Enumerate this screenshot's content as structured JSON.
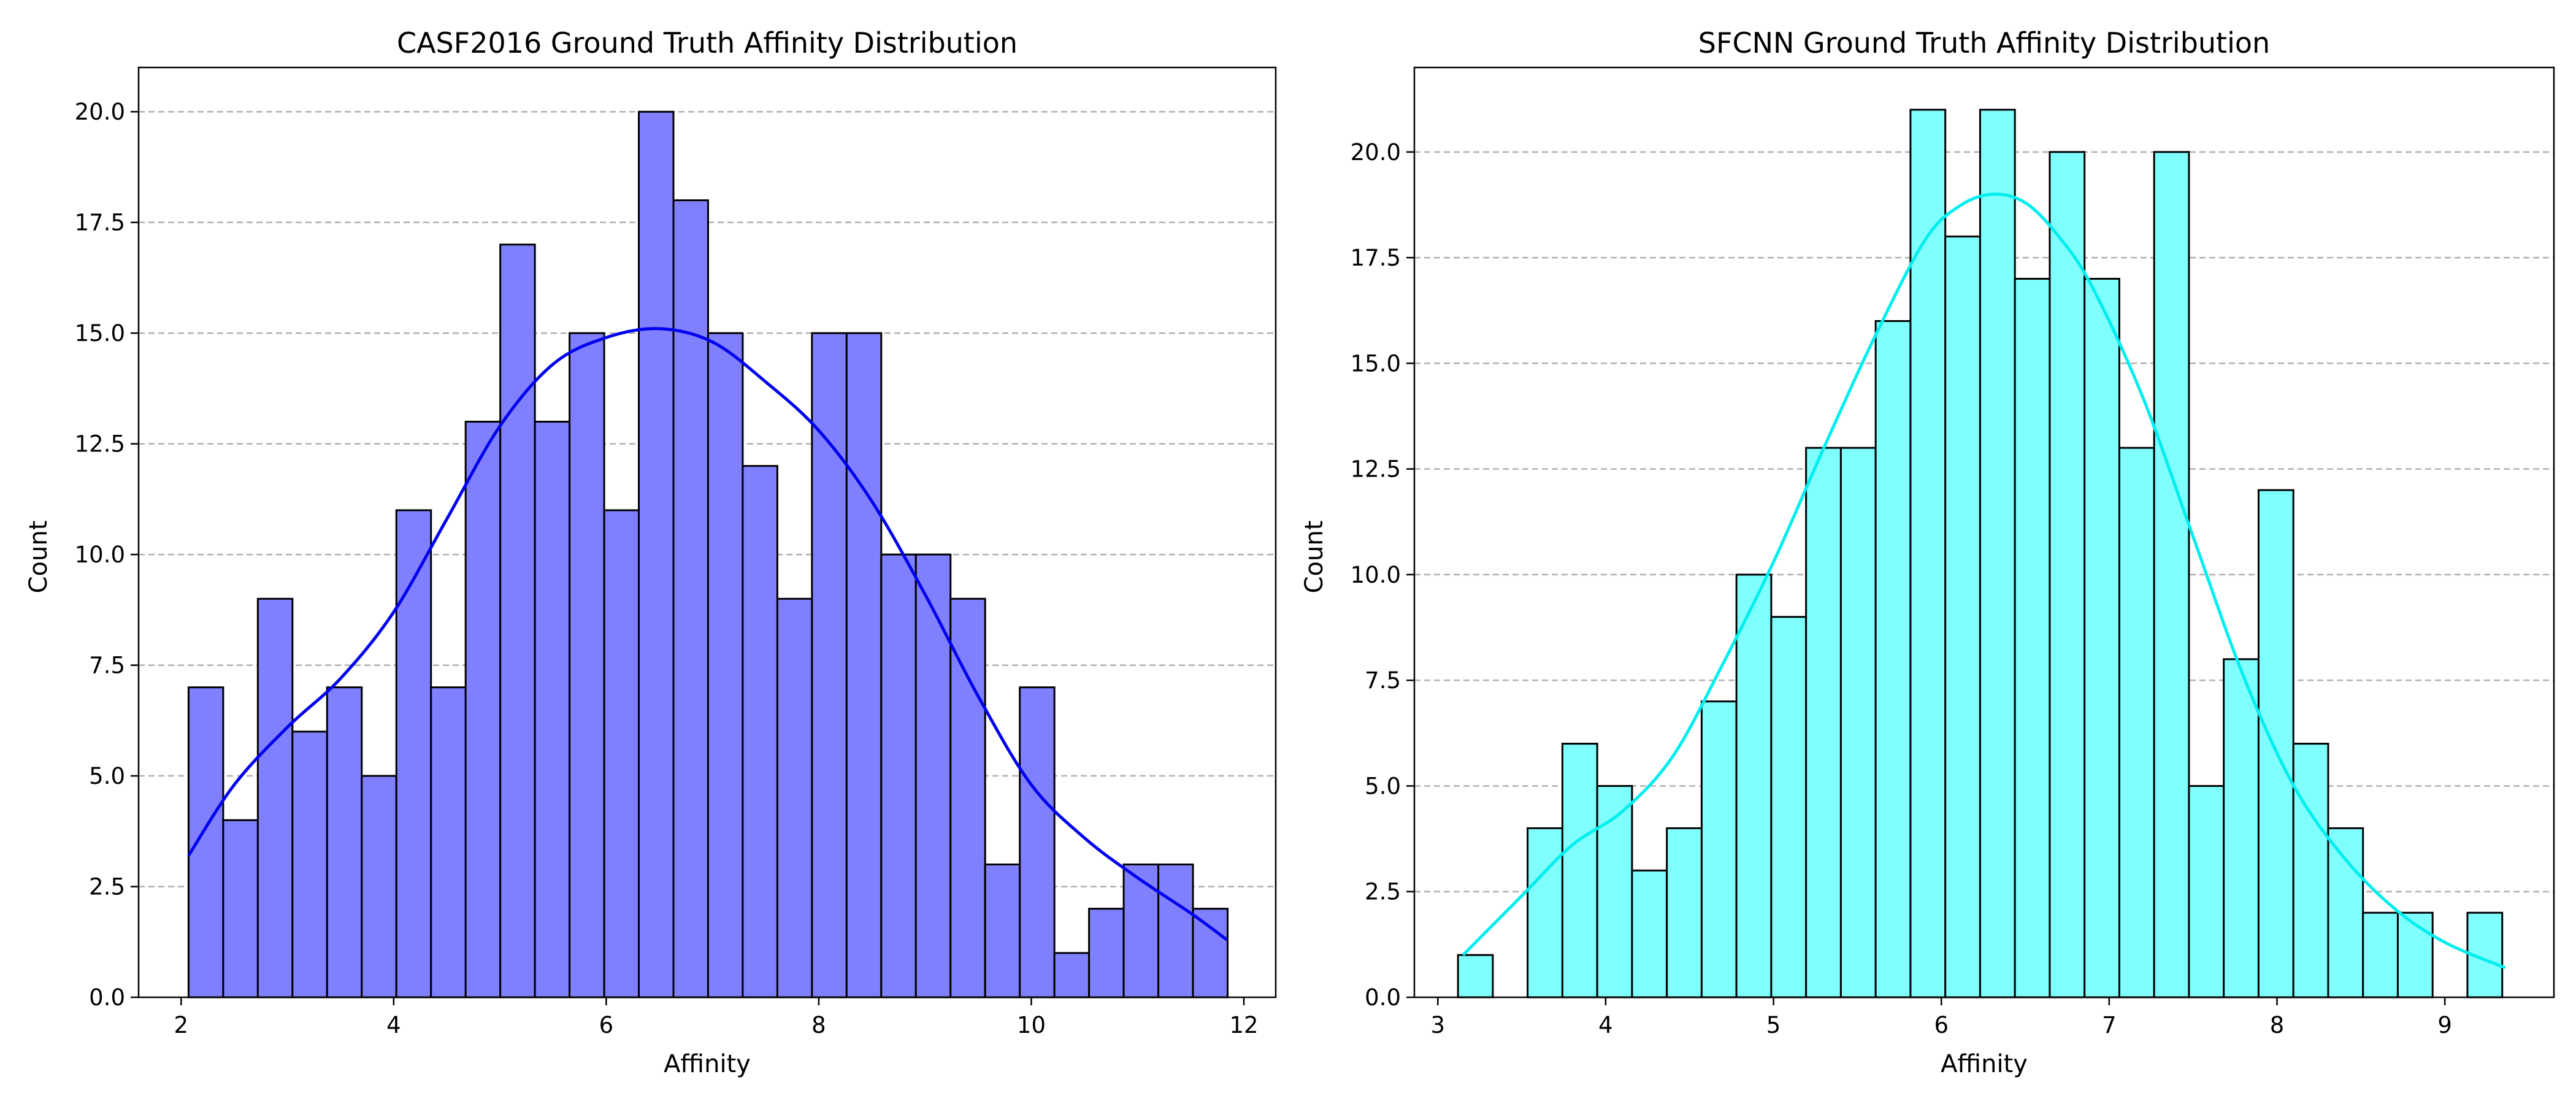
{
  "chart_data": [
    {
      "type": "bar",
      "title": "CASF2016 Ground Truth Affinity Distribution",
      "xlabel": "Affinity",
      "ylabel": "Count",
      "xlim": [
        1.6,
        12.3
      ],
      "ylim": [
        0,
        21
      ],
      "xticks": [
        "2",
        "4",
        "6",
        "8",
        "10",
        "12"
      ],
      "yticks": [
        "0.0",
        "2.5",
        "5.0",
        "7.5",
        "10.0",
        "12.5",
        "15.0",
        "17.5",
        "20.0"
      ],
      "bin_start": 2.07,
      "bin_width": 0.3259,
      "values": [
        7,
        4,
        9,
        6,
        7,
        5,
        11,
        7,
        13,
        17,
        13,
        15,
        11,
        20,
        18,
        15,
        12,
        9,
        15,
        15,
        10,
        10,
        9,
        3,
        7,
        1,
        2,
        3,
        3,
        2
      ],
      "kde": {
        "x": [
          2.07,
          2.5,
          3.0,
          3.5,
          4.0,
          4.5,
          5.0,
          5.5,
          6.0,
          6.5,
          7.0,
          7.5,
          8.0,
          8.5,
          9.0,
          9.5,
          10.0,
          10.5,
          11.0,
          11.5,
          11.84
        ],
        "y": [
          3.2,
          4.8,
          6.1,
          7.2,
          8.7,
          10.8,
          12.9,
          14.3,
          14.9,
          15.1,
          14.8,
          13.9,
          12.8,
          11.2,
          9.1,
          6.8,
          4.8,
          3.6,
          2.7,
          1.9,
          1.3
        ]
      },
      "bar_color": "#8080ff",
      "line_color": "#0000ee",
      "grid": "horizontal dashed"
    },
    {
      "type": "bar",
      "title": "SFCNN Ground Truth Affinity Distribution",
      "xlabel": "Affinity",
      "ylabel": "Count",
      "xlim": [
        2.86,
        9.65
      ],
      "ylim": [
        0,
        22
      ],
      "xticks": [
        "3",
        "4",
        "5",
        "6",
        "7",
        "8",
        "9"
      ],
      "yticks": [
        "0.0",
        "2.5",
        "5.0",
        "7.5",
        "10.0",
        "12.5",
        "15.0",
        "17.5",
        "20.0"
      ],
      "bin_start": 3.12,
      "bin_width": 0.2074,
      "values": [
        1,
        0,
        4,
        6,
        5,
        3,
        4,
        7,
        10,
        9,
        13,
        13,
        16,
        21,
        18,
        21,
        17,
        20,
        17,
        13,
        20,
        5,
        8,
        12,
        6,
        4,
        2,
        2,
        0,
        2
      ],
      "kde": {
        "x": [
          3.15,
          3.5,
          3.8,
          4.1,
          4.4,
          4.7,
          5.0,
          5.3,
          5.6,
          5.9,
          6.1,
          6.3,
          6.5,
          6.7,
          6.9,
          7.2,
          7.5,
          7.8,
          8.1,
          8.4,
          8.7,
          9.0,
          9.36
        ],
        "y": [
          1.0,
          2.4,
          3.6,
          4.4,
          5.7,
          7.9,
          10.3,
          13.0,
          15.6,
          17.9,
          18.7,
          19.0,
          18.8,
          18.0,
          16.8,
          14.2,
          10.9,
          7.6,
          5.0,
          3.3,
          2.1,
          1.3,
          0.7
        ]
      },
      "bar_color": "#80ffff",
      "line_color": "#00eeee",
      "grid": "horizontal dashed"
    }
  ]
}
